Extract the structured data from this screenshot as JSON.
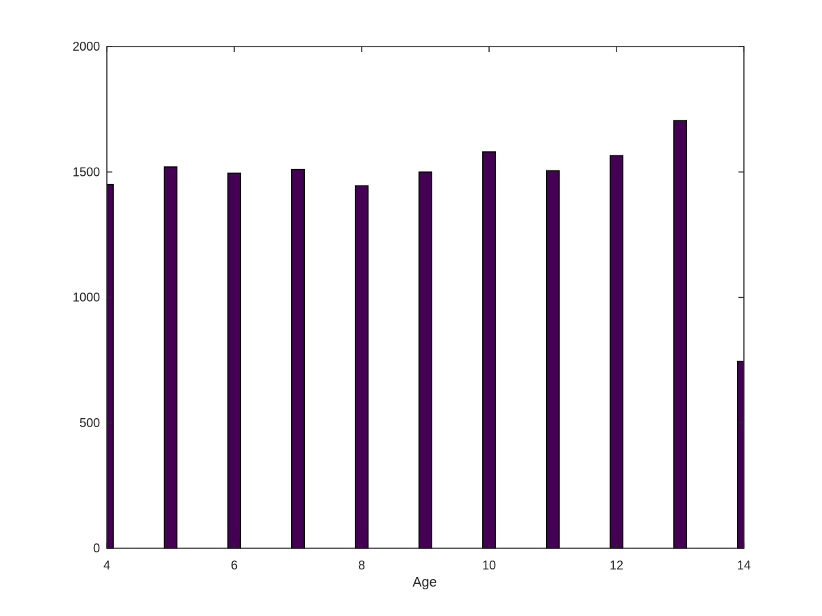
{
  "chart_data": {
    "type": "bar",
    "xlabel": "Age",
    "ylabel": "",
    "title": "",
    "xlim": [
      4,
      14
    ],
    "ylim": [
      0,
      2000
    ],
    "xticks": [
      4,
      6,
      8,
      10,
      12,
      14
    ],
    "xtick_labels": [
      "4",
      "6",
      "8",
      "10",
      "12",
      "14"
    ],
    "yticks": [
      0,
      500,
      1000,
      1500,
      2000
    ],
    "ytick_labels": [
      "0",
      "500",
      "1000",
      "1500",
      "2000"
    ],
    "x": [
      4,
      5,
      6,
      7,
      8,
      9,
      10,
      11,
      12,
      13,
      14
    ],
    "values": [
      1450,
      1520,
      1495,
      1510,
      1445,
      1500,
      1580,
      1505,
      1565,
      1705,
      745
    ],
    "bar_width": 0.2,
    "bar_color": "#440154",
    "edge_color": "#000000",
    "grid": false
  }
}
